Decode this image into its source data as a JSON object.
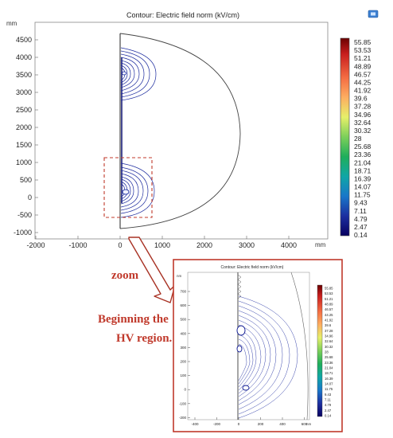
{
  "main_plot": {
    "title": "Contour: Electric field norm (kV/cm)",
    "y_unit": "mm",
    "x_unit": "mm",
    "y_ticks": [
      "4500",
      "4000",
      "3500",
      "3000",
      "2500",
      "2000",
      "1500",
      "1000",
      "500",
      "0",
      "-500",
      "-1000"
    ],
    "x_ticks": [
      "-2000",
      "-1000",
      "0",
      "1000",
      "2000",
      "3000",
      "4000"
    ],
    "icon": "comsol-export-icon"
  },
  "colorbar": {
    "labels": [
      "55.85",
      "53.53",
      "51.21",
      "48.89",
      "46.57",
      "44.25",
      "41.92",
      "39.6",
      "37.28",
      "34.96",
      "32.64",
      "30.32",
      "28",
      "25.68",
      "23.36",
      "21.04",
      "18.71",
      "16.39",
      "14.07",
      "11.75",
      "9.43",
      "7.11",
      "4.79",
      "2.47",
      "0.14"
    ],
    "colors": [
      "#7f0000",
      "#d7191c",
      "#f46d43",
      "#fdae61",
      "#fee08b",
      "#d9ef8b",
      "#66bd63",
      "#1a9850",
      "#00a6a6",
      "#0571b0",
      "#1f3a93",
      "#08005c"
    ]
  },
  "annotation": {
    "zoom_label": "zoom",
    "line1": "Beginning the",
    "line2": "HV region.",
    "color": "#c0392b"
  },
  "inset": {
    "title": "Contour: Electric field norm (kV/cm)",
    "y_unit": "nm",
    "x_unit": "nm",
    "y_ticks": [
      "700",
      "600",
      "500",
      "400",
      "300",
      "200",
      "100",
      "0",
      "-100",
      "-200"
    ],
    "x_ticks": [
      "-400",
      "-200",
      "0",
      "200",
      "400",
      "600"
    ],
    "cb_labels": [
      "55.85",
      "53.53",
      "51.21",
      "48.89",
      "46.57",
      "44.25",
      "41.92",
      "39.6",
      "37.28",
      "34.96",
      "32.64",
      "30.32",
      "28",
      "25.68",
      "23.36",
      "21.04",
      "18.71",
      "16.39",
      "14.07",
      "11.75",
      "9.43",
      "7.11",
      "4.79",
      "2.47",
      "0.14"
    ]
  }
}
